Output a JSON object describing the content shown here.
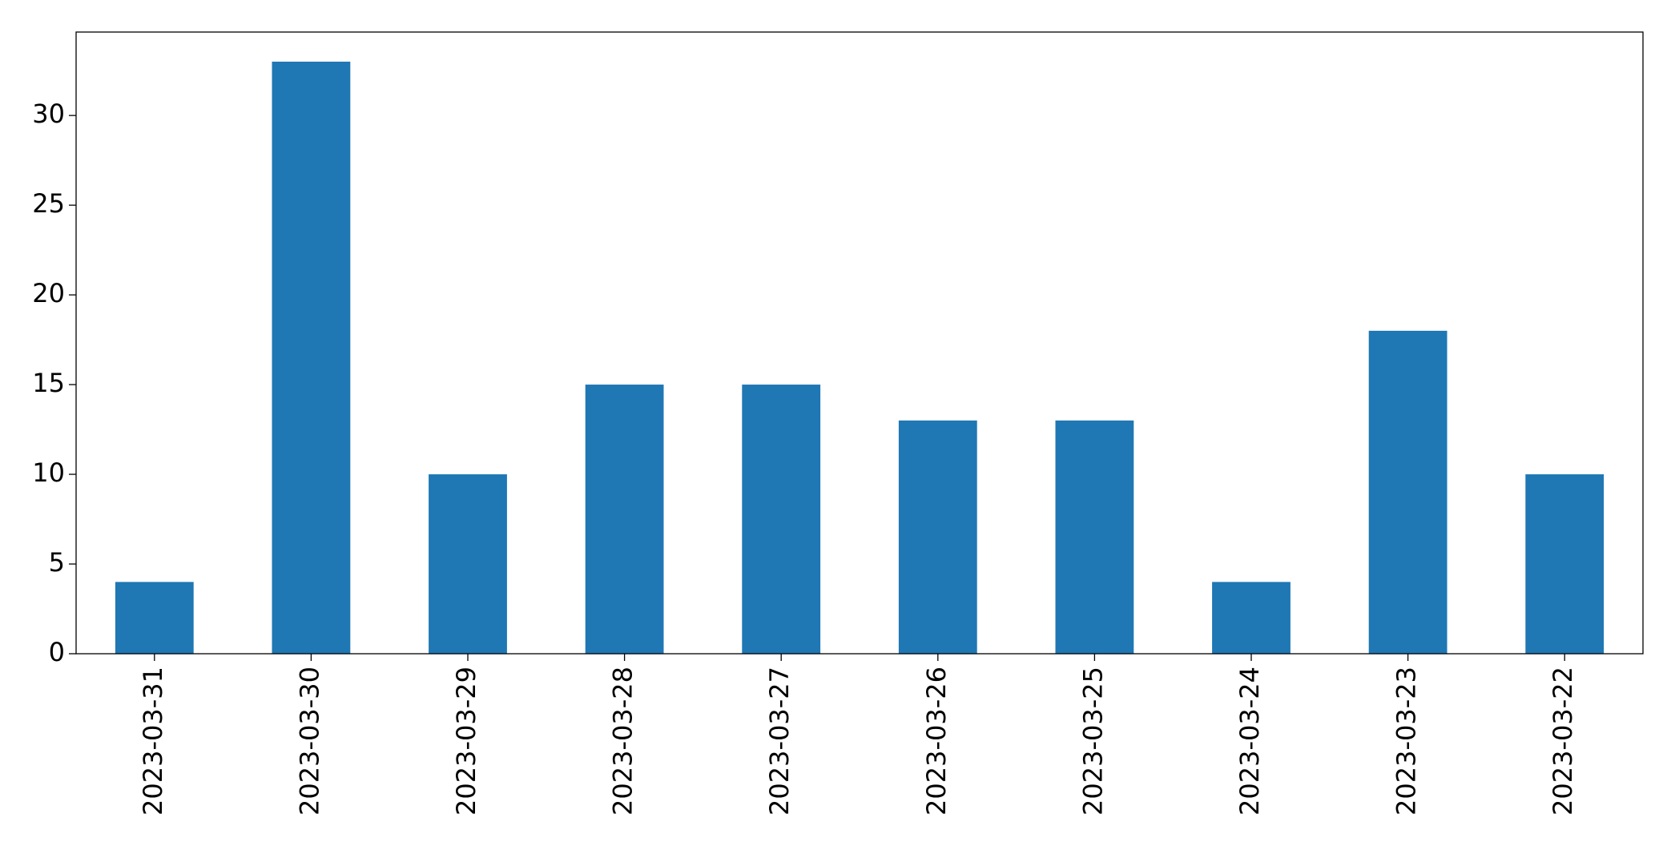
{
  "chart_data": {
    "type": "bar",
    "categories": [
      "2023-03-31",
      "2023-03-30",
      "2023-03-29",
      "2023-03-28",
      "2023-03-27",
      "2023-03-26",
      "2023-03-25",
      "2023-03-24",
      "2023-03-23",
      "2023-03-22"
    ],
    "values": [
      4,
      33,
      10,
      15,
      15,
      13,
      13,
      4,
      18,
      10
    ],
    "color": "#1f77b4",
    "ylim": [
      0,
      34.65
    ],
    "yticks": [
      0,
      5,
      10,
      15,
      20,
      25,
      30
    ],
    "grid": false
  }
}
